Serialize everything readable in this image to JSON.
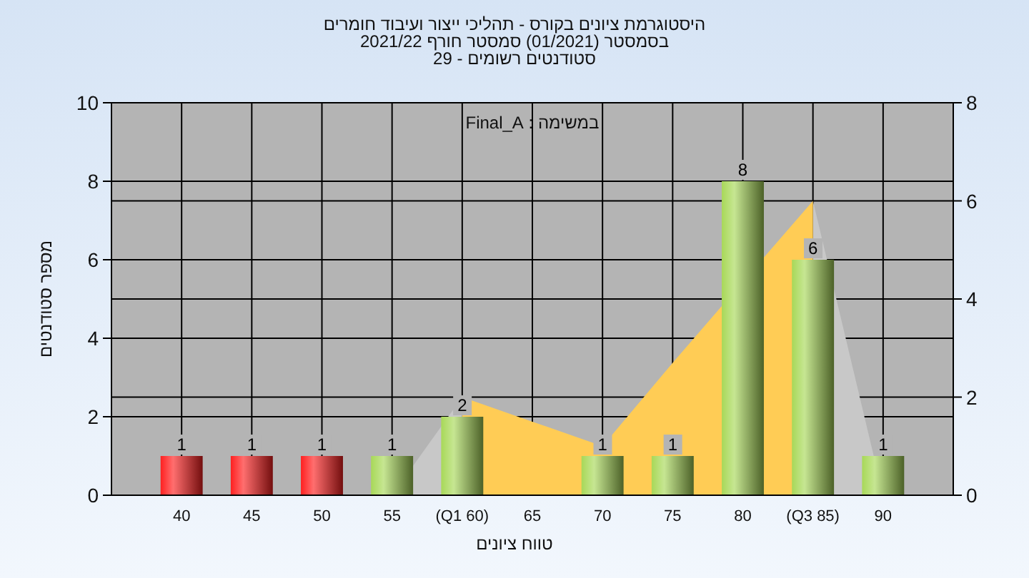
{
  "chart_data": {
    "type": "bar",
    "title": "היסטוגרמת ציונים בקורס - תהליכי ייצור ועיבוד חומרים\nבסמסטר  (01/2021)  סמסטר חורף 2021/22\nסטודנטים רשומים - 29",
    "xlabel": "טווח ציונים",
    "ylabel": "מספר סטודנטים",
    "annotations": [
      "במשימה : Final_A"
    ],
    "categories": [
      "40",
      "45",
      "50",
      "55",
      "(Q1 60)",
      "65",
      "70",
      "75",
      "80",
      "(Q3 85)",
      "90"
    ],
    "series": [
      {
        "type": "area",
        "axis": "y2",
        "color": "#c8c8c8",
        "values": [
          null,
          null,
          null,
          0,
          2,
          null,
          null,
          null,
          null,
          null,
          null
        ]
      },
      {
        "type": "area",
        "axis": "y2",
        "color": "#c8c8c8",
        "values": [
          null,
          null,
          null,
          null,
          null,
          null,
          null,
          null,
          null,
          6,
          0
        ]
      },
      {
        "type": "area",
        "axis": "y2",
        "color": "#ffcc55",
        "values": [
          null,
          null,
          null,
          null,
          2,
          1.5,
          1,
          2.7,
          null,
          6,
          null
        ]
      },
      {
        "colors": [
          "#ff2020",
          "#ff2020",
          "#ff2020",
          "#a8d858",
          "#a8d858",
          "#a8d858",
          "#a8d858",
          "#a8d858",
          "#a8d858",
          "#a8d858",
          "#a8d858"
        ],
        "values": [
          1,
          1,
          1,
          1,
          2,
          0,
          1,
          1,
          8,
          6,
          1
        ],
        "value_labels": [
          "1",
          "1",
          "1",
          "1",
          "2",
          null,
          "1",
          "1",
          "8",
          "6",
          "1"
        ]
      }
    ],
    "ylim": [
      0,
      10
    ],
    "yticks": [
      0,
      2,
      4,
      6,
      8,
      10
    ],
    "y2lim": [
      0,
      8
    ],
    "y2ticks": [
      0,
      2,
      4,
      6,
      8
    ],
    "grid": true,
    "legend": false
  }
}
